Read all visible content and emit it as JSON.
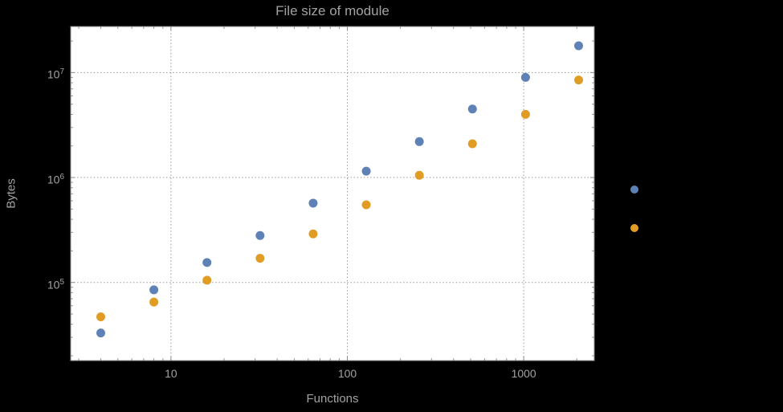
{
  "chart": {
    "title": "File size of module",
    "xlabel": "Functions",
    "ylabel": "Bytes"
  },
  "colors": {
    "background": "#000000",
    "plot_background": "#ffffff",
    "frame": "#8a8a8a",
    "grid": "#999999",
    "text": "#a2a2a2"
  },
  "chart_data": {
    "type": "scatter",
    "title": "File size of module",
    "xlabel": "Functions",
    "ylabel": "Bytes",
    "x_scale": "log",
    "y_scale": "log",
    "grid": "dotted",
    "xlim": [
      2.7,
      2512
    ],
    "ylim": [
      18000,
      27500000
    ],
    "x": [
      4,
      8,
      16,
      32,
      64,
      128,
      256,
      512,
      1024,
      2048
    ],
    "series": [
      {
        "name": "series-blue",
        "color": "#5e82b5",
        "values": [
          33000,
          85000,
          155000,
          280000,
          570000,
          1150000,
          2200000,
          4500000,
          9000000,
          18000000
        ]
      },
      {
        "name": "series-orange",
        "color": "#e19c24",
        "values": [
          47000,
          65000,
          105000,
          170000,
          290000,
          550000,
          1050000,
          2100000,
          4000000,
          8500000
        ]
      }
    ],
    "x_ticks": [
      10,
      100,
      1000
    ],
    "x_tick_labels": [
      "10",
      "100",
      "1000"
    ],
    "y_ticks": [
      100000,
      1000000,
      10000000
    ],
    "y_tick_labels": [
      {
        "base": "10",
        "exp": "5"
      },
      {
        "base": "10",
        "exp": "6"
      },
      {
        "base": "10",
        "exp": "7"
      }
    ],
    "legend": {
      "position": "right-outside",
      "entries": [
        {
          "series": "series-blue",
          "marker_color": "#5e82b5",
          "label": ""
        },
        {
          "series": "series-orange",
          "marker_color": "#e19c24",
          "label": ""
        }
      ]
    }
  }
}
